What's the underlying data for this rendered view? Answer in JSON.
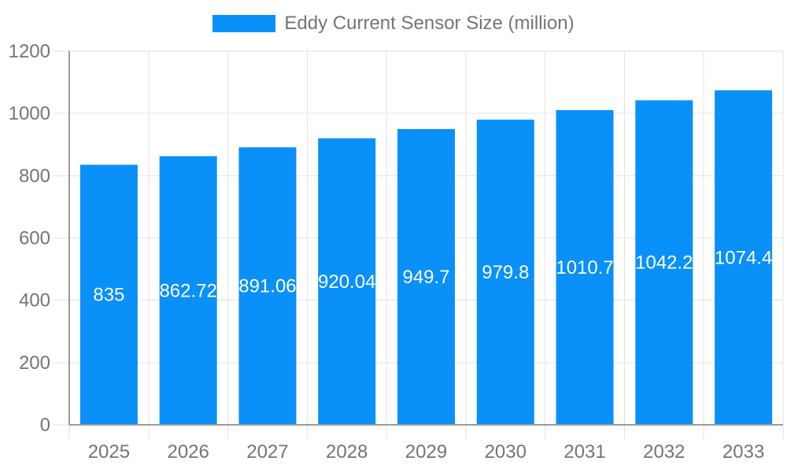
{
  "chart_data": {
    "type": "bar",
    "title": "Eddy Current Sensor Size (million)",
    "legend": {
      "label": "Eddy Current Sensor Size (million)",
      "position": "top"
    },
    "categories": [
      "2025",
      "2026",
      "2027",
      "2028",
      "2029",
      "2030",
      "2031",
      "2032",
      "2033"
    ],
    "series": [
      {
        "name": "Eddy Current Sensor Size (million)",
        "values": [
          835,
          862.72,
          891.06,
          920.04,
          949.7,
          979.8,
          1010.7,
          1042.2,
          1074.4
        ]
      }
    ],
    "value_labels": [
      "835",
      "862.72",
      "891.06",
      "920.04",
      "949.7",
      "979.8",
      "1010.7",
      "1042.2",
      "1074.4"
    ],
    "xlabel": "",
    "ylabel": "",
    "ylim": [
      0,
      1200
    ],
    "y_ticks": [
      0,
      200,
      400,
      600,
      800,
      1000,
      1200
    ],
    "grid": true,
    "colors": {
      "bar": "#0990f9",
      "grid": "#e3e3e3",
      "axis": "#9b9b9b",
      "tick_text": "#757575",
      "value_label": "#ffffff",
      "background": "#ffffff"
    }
  }
}
